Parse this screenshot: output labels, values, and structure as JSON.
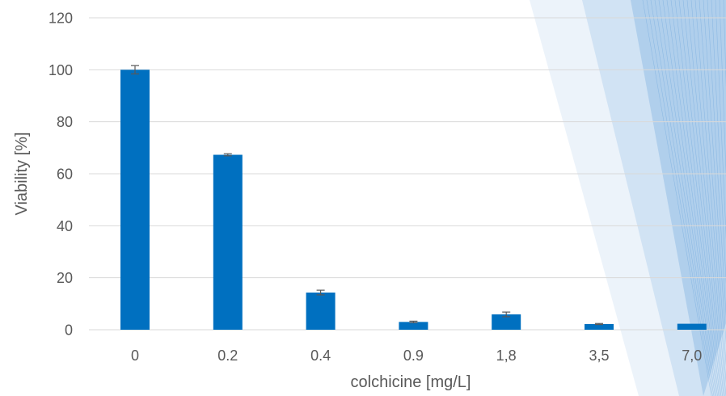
{
  "chart_data": {
    "type": "bar",
    "categories": [
      "0",
      "0.2",
      "0.4",
      "0.9",
      "1,8",
      "3,5",
      "7,0"
    ],
    "values": [
      100,
      67.3,
      14.3,
      3.0,
      5.9,
      2.2,
      2.3
    ],
    "errors": [
      1.6,
      0.4,
      0.9,
      0.3,
      0.9,
      0.2,
      0.0
    ],
    "xlabel": "colchicine [mg/L]",
    "ylabel": "Viability [%]",
    "ylim": [
      0,
      120
    ],
    "yticks": [
      0,
      20,
      40,
      60,
      80,
      100,
      120
    ],
    "grid": true,
    "legend": "none",
    "colors": {
      "bar": "#0070C0",
      "grid": "#D9D9D9",
      "error": "#595959",
      "text": "#595959",
      "decor_light": "#EAF2FA",
      "decor_mid": "#BCD5EE",
      "decor_dark": "#4F94D4"
    }
  }
}
